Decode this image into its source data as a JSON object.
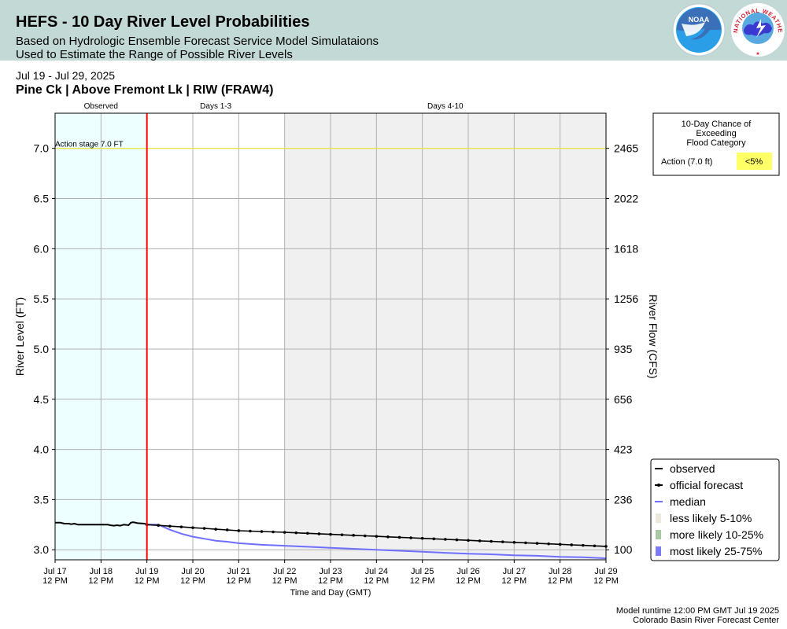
{
  "header": {
    "title": "HEFS - 10 Day River Level Probabilities",
    "subtitle1": "Based on Hydrologic Ensemble Forecast Service Model Simulataions",
    "subtitle2": "Used to Estimate the Range of Possible River Levels",
    "noaa_logo_text": "NOAA",
    "nws_logo_text": "NATIONAL WEATHER SERVICE"
  },
  "date_range": "Jul 19 - Jul 29, 2025",
  "station": "Pine Ck | Above Fremont Lk | RIW (FRAW4)",
  "footer": {
    "runtime": "Model runtime 12:00 PM GMT Jul 19 2025",
    "center": "Colorado Basin River Forecast Center"
  },
  "chance_box": {
    "title_lines": [
      "10-Day Chance of",
      "Exceeding",
      "Flood Category"
    ],
    "row_label": "Action (7.0 ft)",
    "row_value": "<5%",
    "row_color": "#ffff66"
  },
  "colors": {
    "observed_shade": "#eeffff",
    "forecast_days_4_10_shade": "#f0f0f0",
    "forecast_line": "#ff0000",
    "action_line": "#e6e64c",
    "median": "#6f6fff",
    "less_likely": "#eee8dc",
    "more_likely": "#a9c9a4",
    "most_likely": "#7b7bf5"
  },
  "chart_data": {
    "type": "line",
    "title": "",
    "xlabel": "Time and Day (GMT)",
    "ylabel": "River Level (FT)",
    "y2label": "River Flow (CFS)",
    "ylim": [
      2.9,
      7.35
    ],
    "yticks": [
      3.0,
      3.5,
      4.0,
      4.5,
      5.0,
      5.5,
      6.0,
      6.5,
      7.0
    ],
    "yticklabels": [
      "3.0",
      "3.5",
      "4.0",
      "4.5",
      "5.0",
      "5.5",
      "6.0",
      "6.5",
      "7.0"
    ],
    "y2ticks": [
      {
        "stage": 3.0,
        "label": "100"
      },
      {
        "stage": 3.5,
        "label": "236"
      },
      {
        "stage": 4.0,
        "label": "423"
      },
      {
        "stage": 4.5,
        "label": "656"
      },
      {
        "stage": 5.0,
        "label": "935"
      },
      {
        "stage": 5.5,
        "label": "1256"
      },
      {
        "stage": 6.0,
        "label": "1618"
      },
      {
        "stage": 6.5,
        "label": "2022"
      },
      {
        "stage": 7.0,
        "label": "2465"
      }
    ],
    "xlim_days": [
      17,
      29
    ],
    "xticks": [
      {
        "day": 17,
        "label1": "Jul 17",
        "label2": "12 PM"
      },
      {
        "day": 18,
        "label1": "Jul 18",
        "label2": "12 PM"
      },
      {
        "day": 19,
        "label1": "Jul 19",
        "label2": "12 PM"
      },
      {
        "day": 20,
        "label1": "Jul 20",
        "label2": "12 PM"
      },
      {
        "day": 21,
        "label1": "Jul 21",
        "label2": "12 PM"
      },
      {
        "day": 22,
        "label1": "Jul 22",
        "label2": "12 PM"
      },
      {
        "day": 23,
        "label1": "Jul 23",
        "label2": "12 PM"
      },
      {
        "day": 24,
        "label1": "Jul 24",
        "label2": "12 PM"
      },
      {
        "day": 25,
        "label1": "Jul 25",
        "label2": "12 PM"
      },
      {
        "day": 26,
        "label1": "Jul 26",
        "label2": "12 PM"
      },
      {
        "day": 27,
        "label1": "Jul 27",
        "label2": "12 PM"
      },
      {
        "day": 28,
        "label1": "Jul 28",
        "label2": "12 PM"
      },
      {
        "day": 29,
        "label1": "Jul 29",
        "label2": "12 PM"
      }
    ],
    "regions": [
      {
        "label": "Observed",
        "from_day": 17,
        "to_day": 19
      },
      {
        "label": "Days 1-3",
        "from_day": 19,
        "to_day": 22
      },
      {
        "label": "Days 4-10",
        "from_day": 22,
        "to_day": 29
      }
    ],
    "forecast_start_day": 19,
    "action_stage": {
      "value": 7.0,
      "label": "Action stage 7.0 FT"
    },
    "observed": [
      [
        17.0,
        3.27
      ],
      [
        17.12,
        3.27
      ],
      [
        17.2,
        3.26
      ],
      [
        17.3,
        3.26
      ],
      [
        17.35,
        3.255
      ],
      [
        17.42,
        3.26
      ],
      [
        17.5,
        3.25
      ],
      [
        17.75,
        3.25
      ],
      [
        18.0,
        3.25
      ],
      [
        18.15,
        3.25
      ],
      [
        18.2,
        3.245
      ],
      [
        18.28,
        3.24
      ],
      [
        18.35,
        3.245
      ],
      [
        18.42,
        3.24
      ],
      [
        18.5,
        3.25
      ],
      [
        18.6,
        3.245
      ],
      [
        18.65,
        3.27
      ],
      [
        18.7,
        3.275
      ],
      [
        18.8,
        3.265
      ],
      [
        18.95,
        3.26
      ],
      [
        19.0,
        3.25
      ]
    ],
    "official_forecast": [
      [
        19.0,
        3.25
      ],
      [
        19.25,
        3.243
      ],
      [
        19.5,
        3.235
      ],
      [
        19.75,
        3.228
      ],
      [
        20.0,
        3.22
      ],
      [
        20.25,
        3.213
      ],
      [
        20.5,
        3.205
      ],
      [
        20.75,
        3.198
      ],
      [
        21.0,
        3.19
      ],
      [
        21.25,
        3.186
      ],
      [
        21.5,
        3.182
      ],
      [
        21.75,
        3.178
      ],
      [
        22.0,
        3.174
      ],
      [
        22.25,
        3.169
      ],
      [
        22.5,
        3.164
      ],
      [
        22.75,
        3.159
      ],
      [
        23.0,
        3.154
      ],
      [
        23.25,
        3.149
      ],
      [
        23.5,
        3.144
      ],
      [
        23.75,
        3.139
      ],
      [
        24.0,
        3.134
      ],
      [
        24.25,
        3.129
      ],
      [
        24.5,
        3.124
      ],
      [
        24.75,
        3.119
      ],
      [
        25.0,
        3.114
      ],
      [
        25.25,
        3.109
      ],
      [
        25.5,
        3.104
      ],
      [
        25.75,
        3.099
      ],
      [
        26.0,
        3.094
      ],
      [
        26.25,
        3.089
      ],
      [
        26.5,
        3.084
      ],
      [
        26.75,
        3.079
      ],
      [
        27.0,
        3.074
      ],
      [
        27.25,
        3.069
      ],
      [
        27.5,
        3.064
      ],
      [
        27.75,
        3.059
      ],
      [
        28.0,
        3.054
      ],
      [
        28.25,
        3.049
      ],
      [
        28.5,
        3.044
      ],
      [
        28.75,
        3.039
      ],
      [
        29.0,
        3.034
      ]
    ],
    "median": [
      [
        19.0,
        3.25
      ],
      [
        19.25,
        3.25
      ],
      [
        19.5,
        3.2
      ],
      [
        19.75,
        3.16
      ],
      [
        20.0,
        3.13
      ],
      [
        20.25,
        3.11
      ],
      [
        20.5,
        3.09
      ],
      [
        20.75,
        3.08
      ],
      [
        21.0,
        3.065
      ],
      [
        21.5,
        3.05
      ],
      [
        22.0,
        3.04
      ],
      [
        22.5,
        3.03
      ],
      [
        23.0,
        3.02
      ],
      [
        23.5,
        3.01
      ],
      [
        24.0,
        3.0
      ],
      [
        24.5,
        2.99
      ],
      [
        25.0,
        2.98
      ],
      [
        25.5,
        2.97
      ],
      [
        26.0,
        2.96
      ],
      [
        26.5,
        2.955
      ],
      [
        27.0,
        2.945
      ],
      [
        27.5,
        2.94
      ],
      [
        28.0,
        2.93
      ],
      [
        28.5,
        2.925
      ],
      [
        29.0,
        2.915
      ]
    ],
    "legend": [
      {
        "key": "observed",
        "label": "observed",
        "marker": "line"
      },
      {
        "key": "official",
        "label": "official forecast",
        "marker": "line-dots"
      },
      {
        "key": "median",
        "label": "median",
        "marker": "line"
      },
      {
        "key": "less",
        "label": "less likely 5-10%",
        "marker": "box"
      },
      {
        "key": "more",
        "label": "more likely 10-25%",
        "marker": "box"
      },
      {
        "key": "most",
        "label": "most likely 25-75%",
        "marker": "box"
      }
    ],
    "legend_placement": "lower-right outside",
    "grid": true
  }
}
